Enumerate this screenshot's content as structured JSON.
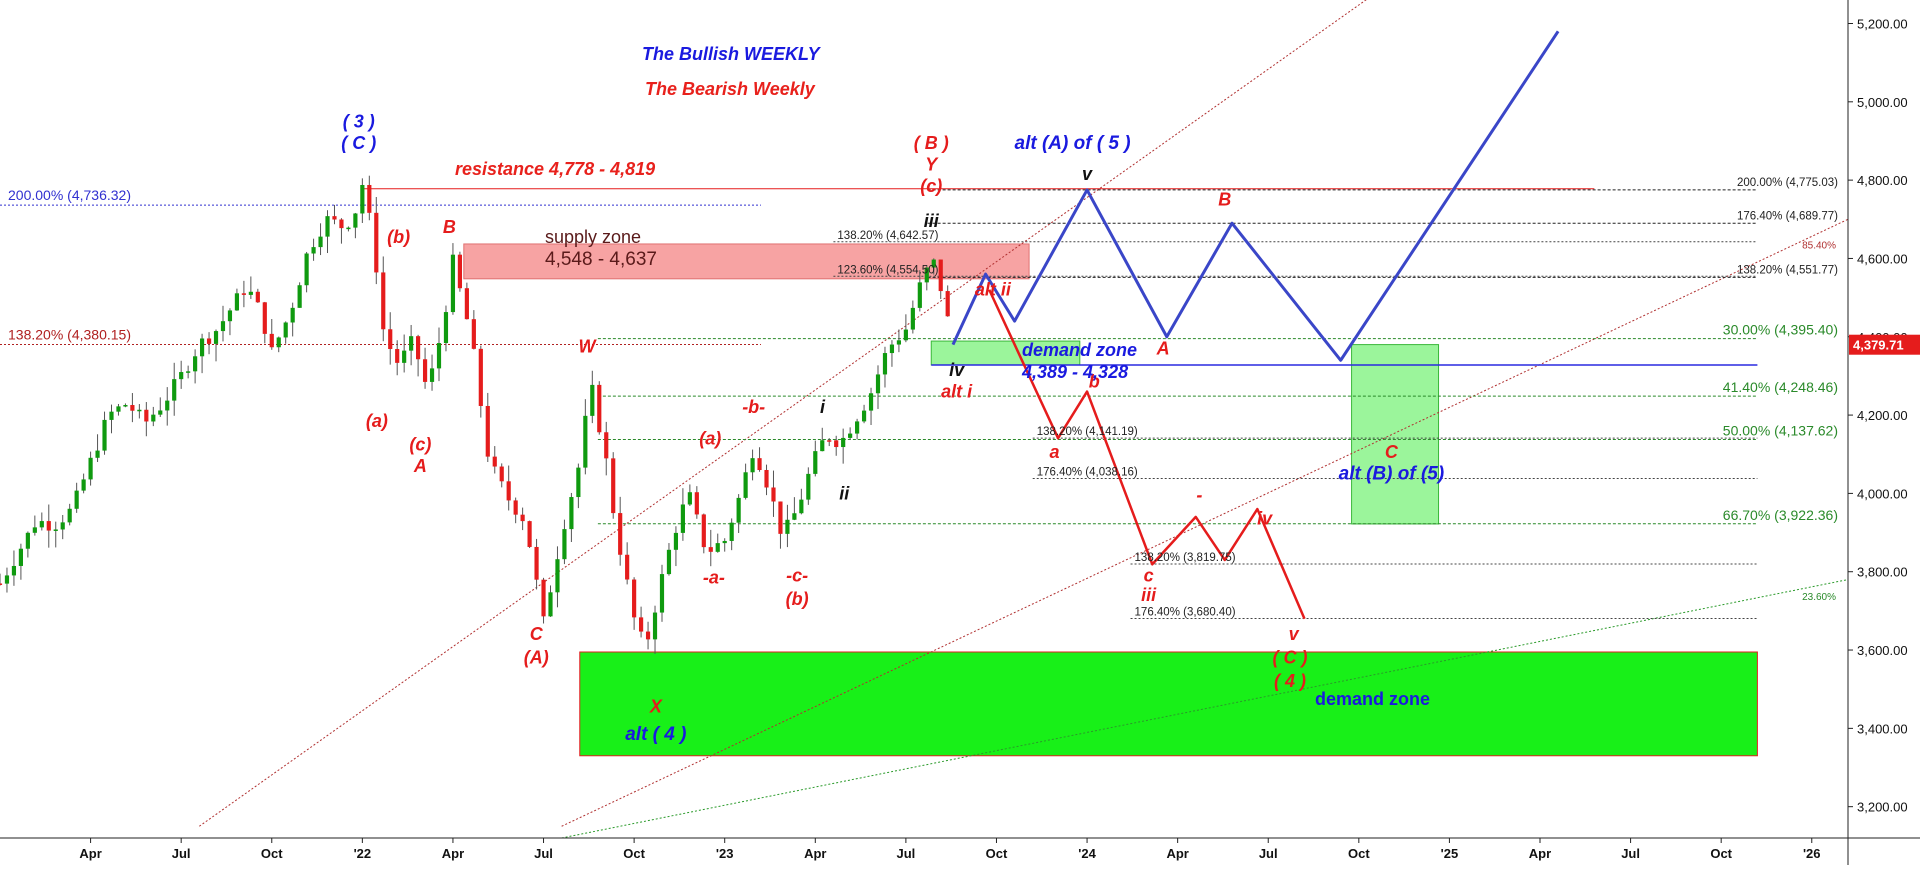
{
  "colors": {
    "candle_up": "#0f9a0f",
    "candle_down": "#e51c1c",
    "bull_path": "#3a46c8",
    "bear_path": "#e51c1c",
    "supply_zone": "#f7a3a3",
    "demand_zone": "#18f018",
    "demand_zone_light": "#9bf59b",
    "price_tag": "#e51c1c"
  },
  "chart_data": {
    "type": "line",
    "title": "The Bullish WEEKLY",
    "subtitle": "The Bearish Weekly",
    "x_tick_labels": [
      "Apr",
      "Jul",
      "Oct",
      "'22",
      "Apr",
      "Jul",
      "Oct",
      "'23",
      "Apr",
      "Jul",
      "Oct",
      "'24",
      "Apr",
      "Jul",
      "Oct",
      "'25",
      "Apr",
      "Jul",
      "Oct",
      "'26"
    ],
    "x_ticks": [
      2021.25,
      2021.5,
      2021.75,
      2022.0,
      2022.25,
      2022.5,
      2022.75,
      2023.0,
      2023.25,
      2023.5,
      2023.75,
      2024.0,
      2024.25,
      2024.5,
      2024.75,
      2025.0,
      2025.25,
      2025.5,
      2025.75,
      2026.0
    ],
    "xlim": [
      2021.0,
      2026.1
    ],
    "y_ticks": [
      3200,
      3400,
      3600,
      3800,
      4000,
      4200,
      4400,
      4600,
      4800,
      5000,
      5200
    ],
    "y_tick_labels": [
      "3,200.00",
      "3,400.00",
      "3,600.00",
      "3,800.00",
      "4,000.00",
      "4,200.00",
      "4,400.00",
      "4,600.00",
      "4,800.00",
      "5,000.00",
      "5,200.00"
    ],
    "ylim": [
      3120,
      5260
    ],
    "last_price": 4379.71,
    "last_price_label": "4,379.71",
    "price_path": [
      [
        2021.0,
        3770
      ],
      [
        2021.05,
        3850
      ],
      [
        2021.1,
        3930
      ],
      [
        2021.15,
        3920
      ],
      [
        2021.2,
        3960
      ],
      [
        2021.25,
        4080
      ],
      [
        2021.3,
        4200
      ],
      [
        2021.35,
        4230
      ],
      [
        2021.4,
        4180
      ],
      [
        2021.45,
        4230
      ],
      [
        2021.5,
        4300
      ],
      [
        2021.55,
        4380
      ],
      [
        2021.6,
        4420
      ],
      [
        2021.65,
        4490
      ],
      [
        2021.68,
        4530
      ],
      [
        2021.72,
        4460
      ],
      [
        2021.75,
        4360
      ],
      [
        2021.8,
        4460
      ],
      [
        2021.85,
        4620
      ],
      [
        2021.9,
        4700
      ],
      [
        2021.95,
        4680
      ],
      [
        2021.98,
        4720
      ],
      [
        2022.0,
        4790
      ],
      [
        2022.03,
        4650
      ],
      [
        2022.06,
        4400
      ],
      [
        2022.1,
        4330
      ],
      [
        2022.14,
        4390
      ],
      [
        2022.18,
        4260
      ],
      [
        2022.22,
        4420
      ],
      [
        2022.25,
        4590
      ],
      [
        2022.3,
        4400
      ],
      [
        2022.35,
        4080
      ],
      [
        2022.4,
        3990
      ],
      [
        2022.45,
        3930
      ],
      [
        2022.5,
        3670
      ],
      [
        2022.55,
        3900
      ],
      [
        2022.6,
        4080
      ],
      [
        2022.63,
        4280
      ],
      [
        2022.67,
        4100
      ],
      [
        2022.7,
        3910
      ],
      [
        2022.75,
        3680
      ],
      [
        2022.78,
        3600
      ],
      [
        2022.82,
        3760
      ],
      [
        2022.86,
        3900
      ],
      [
        2022.9,
        4000
      ],
      [
        2022.95,
        3850
      ],
      [
        2023.0,
        3880
      ],
      [
        2023.04,
        3990
      ],
      [
        2023.08,
        4120
      ],
      [
        2023.12,
        4020
      ],
      [
        2023.16,
        3890
      ],
      [
        2023.2,
        3960
      ],
      [
        2023.24,
        4070
      ],
      [
        2023.28,
        4150
      ],
      [
        2023.32,
        4130
      ],
      [
        2023.36,
        4190
      ],
      [
        2023.4,
        4250
      ],
      [
        2023.45,
        4370
      ],
      [
        2023.5,
        4420
      ],
      [
        2023.55,
        4560
      ],
      [
        2023.58,
        4590
      ],
      [
        2023.6,
        4510
      ],
      [
        2023.63,
        4380
      ]
    ],
    "bull_path": [
      [
        2023.63,
        4380
      ],
      [
        2023.72,
        4560
      ],
      [
        2023.8,
        4440
      ],
      [
        2024.0,
        4775
      ],
      [
        2024.22,
        4400
      ],
      [
        2024.4,
        4690
      ],
      [
        2024.7,
        4340
      ],
      [
        2025.3,
        5180
      ]
    ],
    "bear_path": [
      [
        2023.73,
        4520
      ],
      [
        2023.92,
        4141
      ],
      [
        2024.0,
        4260
      ],
      [
        2024.18,
        3819
      ],
      [
        2024.3,
        3940
      ],
      [
        2024.38,
        3830
      ],
      [
        2024.47,
        3960
      ],
      [
        2024.6,
        3680
      ]
    ],
    "supply_zone": {
      "label": "supply zone",
      "range_label": "4,548 - 4,637",
      "x": [
        2022.28,
        2023.84
      ],
      "y": [
        4548,
        4637
      ]
    },
    "demand_zone_near": {
      "label": "demand zone",
      "range_label": "4,389 - 4,328",
      "x": [
        2023.57,
        2023.98
      ],
      "y": [
        4328,
        4389
      ]
    },
    "demand_zone_alt_b": {
      "x": [
        2024.73,
        2024.97
      ],
      "y": [
        3922,
        4380
      ]
    },
    "demand_zone_big": {
      "label": "demand zone",
      "x": [
        2022.6,
        2025.85
      ],
      "y": [
        3330,
        3595
      ]
    },
    "resistance": {
      "label": "resistance 4,778 - 4,819",
      "y": 4778,
      "x": [
        2022.0,
        2025.4
      ]
    },
    "support_line_y": 4328,
    "left_levels": [
      {
        "label": "200.00% (4,736.32)",
        "y": 4736.32
      },
      {
        "label": "138.20% (4,380.15)",
        "y": 4380.15
      }
    ],
    "right_levels": [
      {
        "label": "200.00% (4,775.03)",
        "y": 4775.03
      },
      {
        "label": "176.40% (4,689.77)",
        "y": 4689.77
      },
      {
        "label": "138.20% (4,551.77)",
        "y": 4551.77
      },
      {
        "label": "30.00% (4,395.40)",
        "y": 4395.4
      },
      {
        "label": "41.40% (4,248.46)",
        "y": 4248.46
      },
      {
        "label": "50.00% (4,137.62)",
        "y": 4137.62
      },
      {
        "label": "66.70% (3,922.36)",
        "y": 3922.36
      }
    ],
    "inner_levels": [
      {
        "label": "138.20% (4,642.57)",
        "y": 4642.57,
        "x": 2023.3
      },
      {
        "label": "123.60% (4,554.50)",
        "y": 4554.5,
        "x": 2023.3
      },
      {
        "label": "138.20% (4,141.19)",
        "y": 4141.19,
        "x": 2023.85
      },
      {
        "label": "176.40% (4,038.16)",
        "y": 4038.16,
        "x": 2023.85
      },
      {
        "label": "138.20% (3,819.75)",
        "y": 3819.75,
        "x": 2024.12
      },
      {
        "label": "176.40% (3,680.40)",
        "y": 3680.4,
        "x": 2024.12
      }
    ],
    "trend_labels": [
      "85.40%",
      "23.60%"
    ],
    "wave_labels": [
      {
        "text": "( 3 )",
        "x": 2021.99,
        "y": 4935,
        "color": "blue"
      },
      {
        "text": "( C )",
        "x": 2021.99,
        "y": 4880,
        "color": "blue"
      },
      {
        "text": "(b)",
        "x": 2022.1,
        "y": 4640,
        "color": "red"
      },
      {
        "text": "B",
        "x": 2022.24,
        "y": 4665,
        "color": "red"
      },
      {
        "text": "(a)",
        "x": 2022.04,
        "y": 4170,
        "color": "red"
      },
      {
        "text": "(c)",
        "x": 2022.16,
        "y": 4110,
        "color": "red"
      },
      {
        "text": "A",
        "x": 2022.16,
        "y": 4055,
        "color": "red"
      },
      {
        "text": "W",
        "x": 2022.62,
        "y": 4360,
        "color": "red"
      },
      {
        "text": "C",
        "x": 2022.48,
        "y": 3625,
        "color": "red"
      },
      {
        "text": "(A)",
        "x": 2022.48,
        "y": 3565,
        "color": "red"
      },
      {
        "text": "X",
        "x": 2022.81,
        "y": 3440,
        "color": "red"
      },
      {
        "text": "alt ( 4 )",
        "x": 2022.81,
        "y": 3370,
        "color": "blue"
      },
      {
        "text": "(a)",
        "x": 2022.96,
        "y": 4125,
        "color": "red"
      },
      {
        "text": "-a-",
        "x": 2022.97,
        "y": 3770,
        "color": "red"
      },
      {
        "text": "-b-",
        "x": 2023.08,
        "y": 4205,
        "color": "red"
      },
      {
        "text": "-c-",
        "x": 2023.2,
        "y": 3775,
        "color": "red"
      },
      {
        "text": "(b)",
        "x": 2023.2,
        "y": 3715,
        "color": "red"
      },
      {
        "text": "i",
        "x": 2023.27,
        "y": 4205,
        "color": "black"
      },
      {
        "text": "ii",
        "x": 2023.33,
        "y": 3985,
        "color": "black"
      },
      {
        "text": "( B )",
        "x": 2023.57,
        "y": 4880,
        "color": "red"
      },
      {
        "text": "Y",
        "x": 2023.57,
        "y": 4825,
        "color": "red"
      },
      {
        "text": "(c)",
        "x": 2023.57,
        "y": 4770,
        "color": "red"
      },
      {
        "text": "iii",
        "x": 2023.57,
        "y": 4680,
        "color": "black"
      },
      {
        "text": "iv",
        "x": 2023.64,
        "y": 4300,
        "color": "black"
      },
      {
        "text": "alt i",
        "x": 2023.64,
        "y": 4245,
        "color": "red"
      },
      {
        "text": "alt ii",
        "x": 2023.74,
        "y": 4505,
        "color": "red"
      },
      {
        "text": "a",
        "x": 2023.91,
        "y": 4090,
        "color": "red"
      },
      {
        "text": "b",
        "x": 2024.02,
        "y": 4270,
        "color": "red"
      },
      {
        "text": "c",
        "x": 2024.17,
        "y": 3775,
        "color": "red"
      },
      {
        "text": "iii",
        "x": 2024.17,
        "y": 3725,
        "color": "red"
      },
      {
        "text": "-",
        "x": 2024.31,
        "y": 3980,
        "color": "red"
      },
      {
        "text": "iv",
        "x": 2024.49,
        "y": 3920,
        "color": "red"
      },
      {
        "text": "v",
        "x": 2024.57,
        "y": 3625,
        "color": "red"
      },
      {
        "text": "( C )",
        "x": 2024.56,
        "y": 3565,
        "color": "red"
      },
      {
        "text": "( 4 )",
        "x": 2024.56,
        "y": 3505,
        "color": "red"
      },
      {
        "text": "alt (A) of ( 5 )",
        "x": 2023.96,
        "y": 4880,
        "color": "blue"
      },
      {
        "text": "v",
        "x": 2024.0,
        "y": 4800,
        "color": "black"
      },
      {
        "text": "A",
        "x": 2024.21,
        "y": 4355,
        "color": "red"
      },
      {
        "text": "B",
        "x": 2024.38,
        "y": 4735,
        "color": "red"
      },
      {
        "text": "C",
        "x": 2024.84,
        "y": 4090,
        "color": "red"
      },
      {
        "text": "alt (B) of (5)",
        "x": 2024.84,
        "y": 4035,
        "color": "blue"
      }
    ]
  }
}
